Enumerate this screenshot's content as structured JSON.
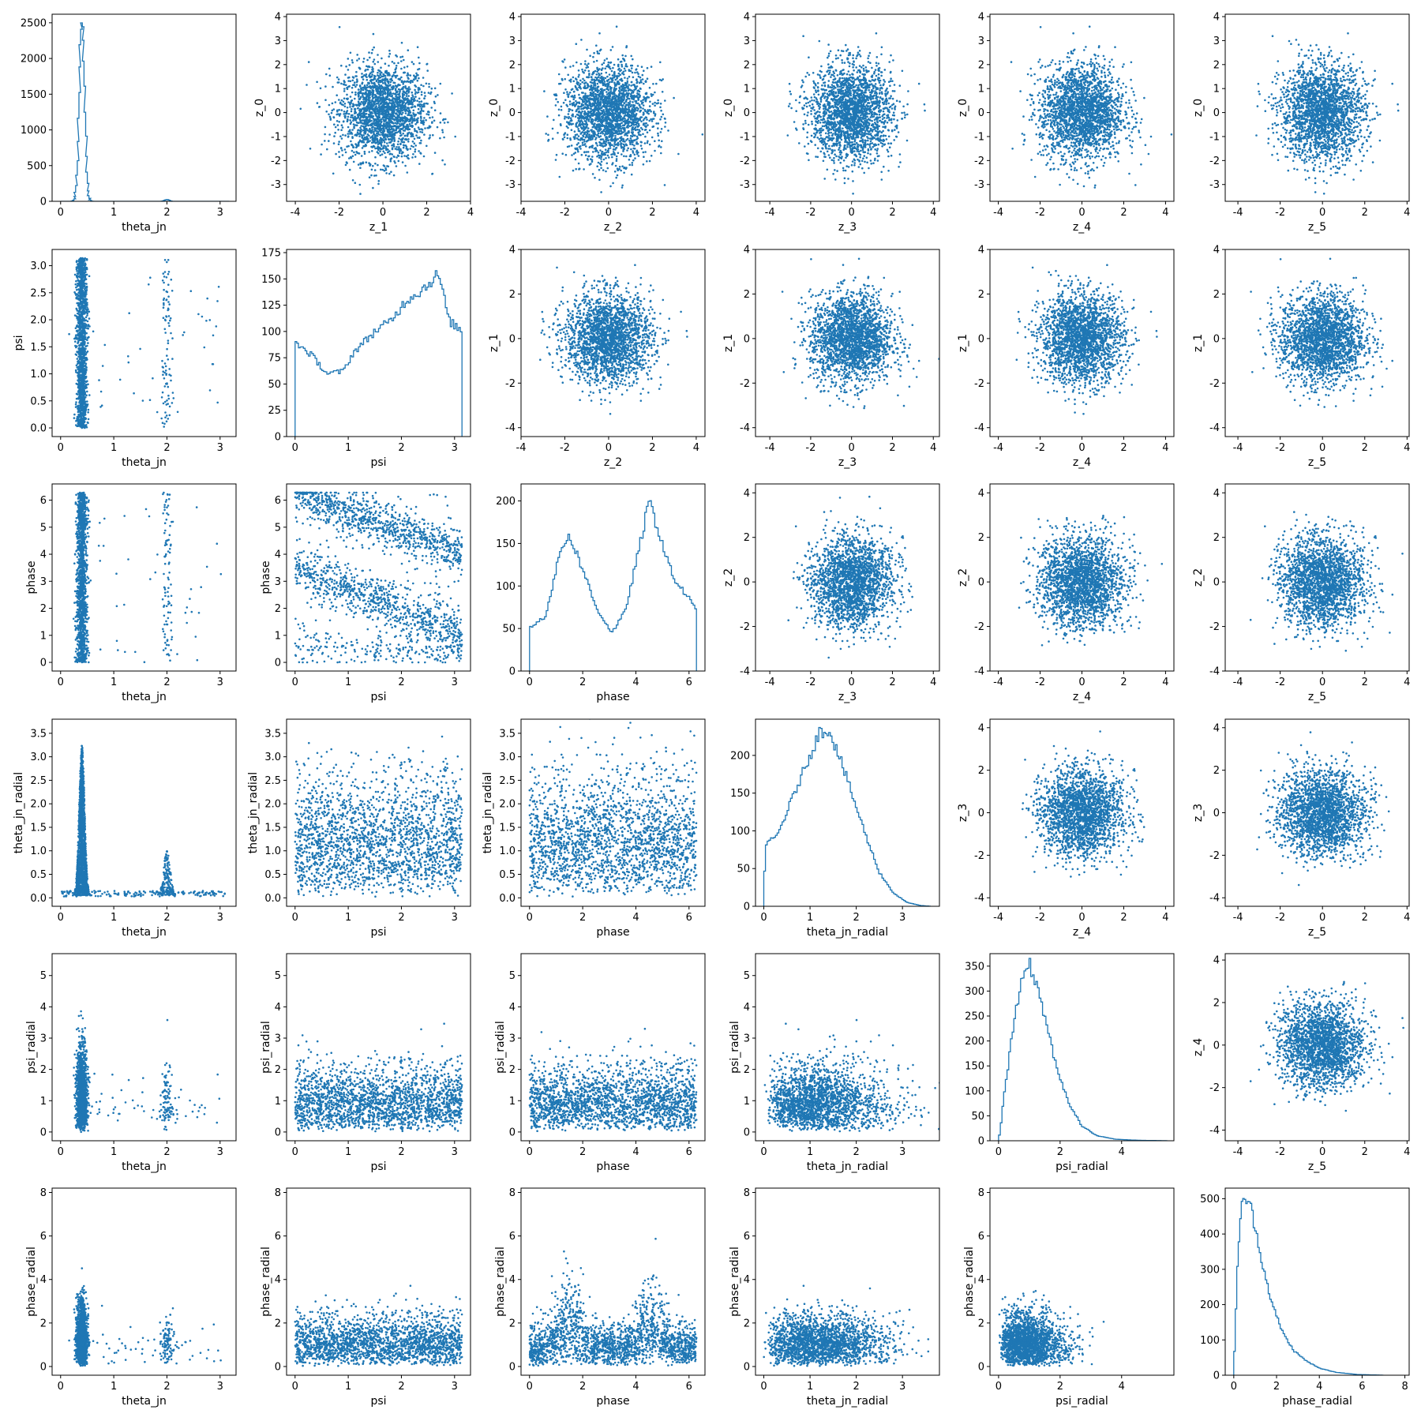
{
  "figure": {
    "rows": 6,
    "cols": 6,
    "point_color": "#1f77b4",
    "layout": "pair-plot"
  },
  "chart_data": [
    {
      "type": "histogram",
      "xlabel": "theta_jn",
      "ylabel": "",
      "xlim": [
        -0.16,
        3.3
      ],
      "ylim": [
        0,
        2620
      ],
      "xticks": [
        0,
        1,
        2,
        3
      ],
      "yticks": [
        0,
        500,
        1000,
        1500,
        2000,
        2500
      ],
      "peaks": [
        {
          "center": 0.4,
          "width": 0.05,
          "height": 2500
        },
        {
          "center": 2.0,
          "width": 0.04,
          "height": 25
        }
      ]
    },
    {
      "type": "scatter",
      "xlabel": "z_1",
      "ylabel": "z_0",
      "xlim": [
        -4.4,
        4.0
      ],
      "ylim": [
        -3.7,
        4.1
      ],
      "xticks": [
        -4,
        -2,
        0,
        2,
        4
      ],
      "yticks": [
        -3,
        -2,
        -1,
        0,
        1,
        2,
        3,
        4
      ],
      "dist": "gauss2d"
    },
    {
      "type": "scatter",
      "xlabel": "z_2",
      "ylabel": "z_0",
      "xlim": [
        -4.0,
        4.4
      ],
      "ylim": [
        -3.7,
        4.1
      ],
      "xticks": [
        -4,
        -2,
        0,
        2,
        4
      ],
      "yticks": [
        -3,
        -2,
        -1,
        0,
        1,
        2,
        3,
        4
      ],
      "dist": "gauss2d"
    },
    {
      "type": "scatter",
      "xlabel": "z_3",
      "ylabel": "z_0",
      "xlim": [
        -4.7,
        4.3
      ],
      "ylim": [
        -3.7,
        4.1
      ],
      "xticks": [
        -4,
        -2,
        0,
        2,
        4
      ],
      "yticks": [
        -3,
        -2,
        -1,
        0,
        1,
        2,
        3,
        4
      ],
      "dist": "gauss2d"
    },
    {
      "type": "scatter",
      "xlabel": "z_4",
      "ylabel": "z_0",
      "xlim": [
        -4.4,
        4.4
      ],
      "ylim": [
        -3.7,
        4.1
      ],
      "xticks": [
        -4,
        -2,
        0,
        2,
        4
      ],
      "yticks": [
        -3,
        -2,
        -1,
        0,
        1,
        2,
        3,
        4
      ],
      "dist": "gauss2d"
    },
    {
      "type": "scatter",
      "xlabel": "z_5",
      "ylabel": "z_0",
      "xlim": [
        -4.6,
        4.1
      ],
      "ylim": [
        -3.7,
        4.1
      ],
      "xticks": [
        -4,
        -2,
        0,
        2,
        4
      ],
      "yticks": [
        -3,
        -2,
        -1,
        0,
        1,
        2,
        3,
        4
      ],
      "dist": "gauss2d"
    },
    {
      "type": "scatter",
      "xlabel": "theta_jn",
      "ylabel": "psi",
      "xlim": [
        -0.16,
        3.3
      ],
      "ylim": [
        -0.16,
        3.3
      ],
      "xticks": [
        0,
        1,
        2,
        3
      ],
      "yticks": [
        0.0,
        0.5,
        1.0,
        1.5,
        2.0,
        2.5,
        3.0
      ],
      "dist": "theta_vs_uniform",
      "yrange": [
        0,
        3.14
      ]
    },
    {
      "type": "histogram",
      "xlabel": "psi",
      "ylabel": "",
      "xlim": [
        -0.16,
        3.3
      ],
      "ylim": [
        0,
        178
      ],
      "xticks": [
        0,
        1,
        2,
        3
      ],
      "yticks": [
        0,
        25,
        50,
        75,
        100,
        125,
        150,
        175
      ],
      "profile": [
        [
          0,
          90
        ],
        [
          0.3,
          78
        ],
        [
          0.6,
          60
        ],
        [
          0.9,
          62
        ],
        [
          1.1,
          80
        ],
        [
          1.5,
          100
        ],
        [
          1.8,
          110
        ],
        [
          2.1,
          130
        ],
        [
          2.4,
          140
        ],
        [
          2.7,
          155
        ],
        [
          2.9,
          110
        ],
        [
          3.14,
          100
        ]
      ]
    },
    {
      "type": "scatter",
      "xlabel": "z_2",
      "ylabel": "z_1",
      "xlim": [
        -4.0,
        4.4
      ],
      "ylim": [
        -4.4,
        4.0
      ],
      "xticks": [
        -4,
        -2,
        0,
        2,
        4
      ],
      "yticks": [
        -4,
        -2,
        0,
        2,
        4
      ],
      "dist": "gauss2d"
    },
    {
      "type": "scatter",
      "xlabel": "z_3",
      "ylabel": "z_1",
      "xlim": [
        -4.7,
        4.3
      ],
      "ylim": [
        -4.4,
        4.0
      ],
      "xticks": [
        -4,
        -2,
        0,
        2,
        4
      ],
      "yticks": [
        -4,
        -2,
        0,
        2,
        4
      ],
      "dist": "gauss2d"
    },
    {
      "type": "scatter",
      "xlabel": "z_4",
      "ylabel": "z_1",
      "xlim": [
        -4.4,
        4.4
      ],
      "ylim": [
        -4.4,
        4.0
      ],
      "xticks": [
        -4,
        -2,
        0,
        2,
        4
      ],
      "yticks": [
        -4,
        -2,
        0,
        2,
        4
      ],
      "dist": "gauss2d"
    },
    {
      "type": "scatter",
      "xlabel": "z_5",
      "ylabel": "z_1",
      "xlim": [
        -4.6,
        4.1
      ],
      "ylim": [
        -4.4,
        4.0
      ],
      "xticks": [
        -4,
        -2,
        0,
        2,
        4
      ],
      "yticks": [
        -4,
        -2,
        0,
        2,
        4
      ],
      "dist": "gauss2d"
    },
    {
      "type": "scatter",
      "xlabel": "theta_jn",
      "ylabel": "phase",
      "xlim": [
        -0.16,
        3.3
      ],
      "ylim": [
        -0.32,
        6.6
      ],
      "xticks": [
        0,
        1,
        2,
        3
      ],
      "yticks": [
        0,
        1,
        2,
        3,
        4,
        5,
        6
      ],
      "dist": "theta_vs_uniform",
      "yrange": [
        0,
        6.28
      ]
    },
    {
      "type": "scatter",
      "xlabel": "psi",
      "ylabel": "phase",
      "xlim": [
        -0.16,
        3.3
      ],
      "ylim": [
        -0.32,
        6.6
      ],
      "xticks": [
        0,
        1,
        2,
        3
      ],
      "yticks": [
        0,
        1,
        2,
        3,
        4,
        5,
        6
      ],
      "dist": "psi_phase_bands"
    },
    {
      "type": "histogram",
      "xlabel": "phase",
      "ylabel": "",
      "xlim": [
        -0.32,
        6.6
      ],
      "ylim": [
        0,
        220
      ],
      "xticks": [
        0,
        2,
        4,
        6
      ],
      "yticks": [
        0,
        50,
        100,
        150,
        200
      ],
      "profile": [
        [
          0,
          50
        ],
        [
          0.6,
          65
        ],
        [
          1.2,
          145
        ],
        [
          1.5,
          160
        ],
        [
          2.0,
          120
        ],
        [
          2.5,
          75
        ],
        [
          3.1,
          45
        ],
        [
          3.6,
          70
        ],
        [
          4.1,
          140
        ],
        [
          4.5,
          200
        ],
        [
          4.9,
          160
        ],
        [
          5.4,
          110
        ],
        [
          6.0,
          85
        ],
        [
          6.28,
          70
        ]
      ]
    },
    {
      "type": "scatter",
      "xlabel": "z_3",
      "ylabel": "z_2",
      "xlim": [
        -4.7,
        4.3
      ],
      "ylim": [
        -4.0,
        4.4
      ],
      "xticks": [
        -4,
        -2,
        0,
        2,
        4
      ],
      "yticks": [
        -4,
        -2,
        0,
        2,
        4
      ],
      "dist": "gauss2d"
    },
    {
      "type": "scatter",
      "xlabel": "z_4",
      "ylabel": "z_2",
      "xlim": [
        -4.4,
        4.4
      ],
      "ylim": [
        -4.0,
        4.4
      ],
      "xticks": [
        -4,
        -2,
        0,
        2,
        4
      ],
      "yticks": [
        -4,
        -2,
        0,
        2,
        4
      ],
      "dist": "gauss2d"
    },
    {
      "type": "scatter",
      "xlabel": "z_5",
      "ylabel": "z_2",
      "xlim": [
        -4.6,
        4.1
      ],
      "ylim": [
        -4.0,
        4.4
      ],
      "xticks": [
        -4,
        -2,
        0,
        2,
        4
      ],
      "yticks": [
        -4,
        -2,
        0,
        2,
        4
      ],
      "dist": "gauss2d"
    },
    {
      "type": "scatter",
      "xlabel": "theta_jn",
      "ylabel": "theta_jn_radial",
      "xlim": [
        -0.16,
        3.3
      ],
      "ylim": [
        -0.18,
        3.8
      ],
      "xticks": [
        0,
        1,
        2,
        3
      ],
      "yticks": [
        0.0,
        0.5,
        1.0,
        1.5,
        2.0,
        2.5,
        3.0,
        3.5
      ],
      "dist": "theta_vs_radial"
    },
    {
      "type": "scatter",
      "xlabel": "psi",
      "ylabel": "theta_jn_radial",
      "xlim": [
        -0.16,
        3.3
      ],
      "ylim": [
        -0.18,
        3.8
      ],
      "xticks": [
        0,
        1,
        2,
        3
      ],
      "yticks": [
        0.0,
        0.5,
        1.0,
        1.5,
        2.0,
        2.5,
        3.0,
        3.5
      ],
      "dist": "uniform_vs_radial",
      "xrange": [
        0,
        3.14
      ],
      "scale": 1.0
    },
    {
      "type": "scatter",
      "xlabel": "phase",
      "ylabel": "theta_jn_radial",
      "xlim": [
        -0.32,
        6.6
      ],
      "ylim": [
        -0.18,
        3.8
      ],
      "xticks": [
        0,
        2,
        4,
        6
      ],
      "yticks": [
        0.0,
        0.5,
        1.0,
        1.5,
        2.0,
        2.5,
        3.0,
        3.5
      ],
      "dist": "uniform_vs_radial",
      "xrange": [
        0,
        6.28
      ],
      "scale": 1.0
    },
    {
      "type": "histogram",
      "xlabel": "theta_jn_radial",
      "ylabel": "",
      "xlim": [
        -0.18,
        3.8
      ],
      "ylim": [
        0,
        248
      ],
      "xticks": [
        0,
        1,
        2,
        3
      ],
      "yticks": [
        0,
        50,
        100,
        150,
        200
      ],
      "profile": [
        [
          0,
          0
        ],
        [
          0.03,
          80
        ],
        [
          0.3,
          95
        ],
        [
          0.6,
          140
        ],
        [
          0.9,
          185
        ],
        [
          1.2,
          230
        ],
        [
          1.4,
          235
        ],
        [
          1.6,
          205
        ],
        [
          1.9,
          150
        ],
        [
          2.2,
          95
        ],
        [
          2.5,
          45
        ],
        [
          2.8,
          18
        ],
        [
          3.1,
          5
        ],
        [
          3.4,
          1
        ],
        [
          3.6,
          0
        ]
      ]
    },
    {
      "type": "scatter",
      "xlabel": "z_4",
      "ylabel": "z_3",
      "xlim": [
        -4.4,
        4.4
      ],
      "ylim": [
        -4.4,
        4.4
      ],
      "xticks": [
        -4,
        -2,
        0,
        2,
        4
      ],
      "yticks": [
        -4,
        -2,
        0,
        2,
        4
      ],
      "dist": "gauss2d"
    },
    {
      "type": "scatter",
      "xlabel": "z_5",
      "ylabel": "z_3",
      "xlim": [
        -4.6,
        4.1
      ],
      "ylim": [
        -4.4,
        4.4
      ],
      "xticks": [
        -4,
        -2,
        0,
        2,
        4
      ],
      "yticks": [
        -4,
        -2,
        0,
        2,
        4
      ],
      "dist": "gauss2d"
    },
    {
      "type": "scatter",
      "xlabel": "theta_jn",
      "ylabel": "psi_radial",
      "xlim": [
        -0.16,
        3.3
      ],
      "ylim": [
        -0.28,
        5.7
      ],
      "xticks": [
        0,
        1,
        2,
        3
      ],
      "yticks": [
        0,
        1,
        2,
        3,
        4,
        5
      ],
      "dist": "theta_vs_radial2"
    },
    {
      "type": "scatter",
      "xlabel": "psi",
      "ylabel": "psi_radial",
      "xlim": [
        -0.16,
        3.3
      ],
      "ylim": [
        -0.28,
        5.7
      ],
      "xticks": [
        0,
        1,
        2,
        3
      ],
      "yticks": [
        0,
        1,
        2,
        3,
        4,
        5
      ],
      "dist": "uniform_vs_radial",
      "xrange": [
        0,
        3.14
      ],
      "scale": 0.8
    },
    {
      "type": "scatter",
      "xlabel": "phase",
      "ylabel": "psi_radial",
      "xlim": [
        -0.32,
        6.6
      ],
      "ylim": [
        -0.28,
        5.7
      ],
      "xticks": [
        0,
        2,
        4,
        6
      ],
      "yticks": [
        0,
        1,
        2,
        3,
        4,
        5
      ],
      "dist": "uniform_vs_radial",
      "xrange": [
        0,
        6.28
      ],
      "scale": 0.8
    },
    {
      "type": "scatter",
      "xlabel": "theta_jn_radial",
      "ylabel": "psi_radial",
      "xlim": [
        -0.18,
        3.8
      ],
      "ylim": [
        -0.28,
        5.7
      ],
      "xticks": [
        0,
        1,
        2,
        3
      ],
      "yticks": [
        0,
        1,
        2,
        3,
        4,
        5
      ],
      "dist": "radial_vs_radial",
      "sx": 1.0,
      "sy": 0.8
    },
    {
      "type": "histogram",
      "xlabel": "psi_radial",
      "ylabel": "",
      "xlim": [
        -0.28,
        5.7
      ],
      "ylim": [
        0,
        375
      ],
      "xticks": [
        0,
        2,
        4
      ],
      "yticks": [
        0,
        50,
        100,
        150,
        200,
        250,
        300,
        350
      ],
      "profile": [
        [
          0,
          0
        ],
        [
          0.05,
          20
        ],
        [
          0.2,
          100
        ],
        [
          0.5,
          240
        ],
        [
          0.8,
          330
        ],
        [
          1.0,
          355
        ],
        [
          1.3,
          300
        ],
        [
          1.6,
          225
        ],
        [
          1.9,
          140
        ],
        [
          2.3,
          75
        ],
        [
          2.7,
          30
        ],
        [
          3.2,
          10
        ],
        [
          3.8,
          3
        ],
        [
          4.5,
          1
        ],
        [
          5.5,
          0
        ]
      ]
    },
    {
      "type": "scatter",
      "xlabel": "z_5",
      "ylabel": "z_4",
      "xlim": [
        -4.6,
        4.1
      ],
      "ylim": [
        -4.5,
        4.3
      ],
      "xticks": [
        -4,
        -2,
        0,
        2,
        4
      ],
      "yticks": [
        -4,
        -2,
        0,
        2,
        4
      ],
      "dist": "gauss2d"
    },
    {
      "type": "scatter",
      "xlabel": "theta_jn",
      "ylabel": "phase_radial",
      "xlim": [
        -0.16,
        3.3
      ],
      "ylim": [
        -0.4,
        8.2
      ],
      "xticks": [
        0,
        1,
        2,
        3
      ],
      "yticks": [
        0,
        2,
        4,
        6,
        8
      ],
      "dist": "theta_vs_radial3"
    },
    {
      "type": "scatter",
      "xlabel": "psi",
      "ylabel": "phase_radial",
      "xlim": [
        -0.16,
        3.3
      ],
      "ylim": [
        -0.4,
        8.2
      ],
      "xticks": [
        0,
        1,
        2,
        3
      ],
      "yticks": [
        0,
        2,
        4,
        6,
        8
      ],
      "dist": "uniform_vs_radial",
      "xrange": [
        0,
        3.14
      ],
      "scale": 0.9
    },
    {
      "type": "scatter",
      "xlabel": "phase",
      "ylabel": "phase_radial",
      "xlim": [
        -0.32,
        6.6
      ],
      "ylim": [
        -0.4,
        8.2
      ],
      "xticks": [
        0,
        2,
        4,
        6
      ],
      "yticks": [
        0,
        2,
        4,
        6,
        8
      ],
      "dist": "phase_vs_radial"
    },
    {
      "type": "scatter",
      "xlabel": "theta_jn_radial",
      "ylabel": "phase_radial",
      "xlim": [
        -0.18,
        3.8
      ],
      "ylim": [
        -0.4,
        8.2
      ],
      "xticks": [
        0,
        1,
        2,
        3
      ],
      "yticks": [
        0,
        2,
        4,
        6,
        8
      ],
      "dist": "radial_vs_radial",
      "sx": 1.0,
      "sy": 0.9
    },
    {
      "type": "scatter",
      "xlabel": "psi_radial",
      "ylabel": "phase_radial",
      "xlim": [
        -0.28,
        5.7
      ],
      "ylim": [
        -0.4,
        8.2
      ],
      "xticks": [
        0,
        2,
        4
      ],
      "yticks": [
        0,
        2,
        4,
        6,
        8
      ],
      "dist": "radial_vs_radial",
      "sx": 0.8,
      "sy": 0.9
    },
    {
      "type": "histogram",
      "xlabel": "phase_radial",
      "ylabel": "",
      "xlim": [
        -0.4,
        8.2
      ],
      "ylim": [
        0,
        530
      ],
      "xticks": [
        0,
        2,
        4,
        6,
        8
      ],
      "yticks": [
        0,
        100,
        200,
        300,
        400,
        500
      ],
      "profile": [
        [
          0,
          0
        ],
        [
          0.05,
          100
        ],
        [
          0.2,
          350
        ],
        [
          0.4,
          490
        ],
        [
          0.7,
          500
        ],
        [
          1.0,
          420
        ],
        [
          1.4,
          300
        ],
        [
          1.8,
          200
        ],
        [
          2.3,
          120
        ],
        [
          2.8,
          70
        ],
        [
          3.4,
          40
        ],
        [
          4.0,
          20
        ],
        [
          4.8,
          8
        ],
        [
          5.8,
          2
        ],
        [
          7.0,
          0
        ]
      ]
    }
  ]
}
